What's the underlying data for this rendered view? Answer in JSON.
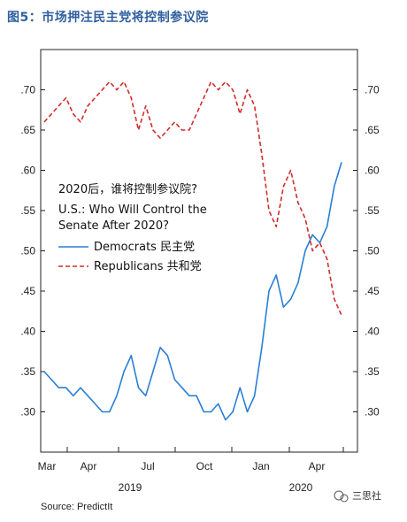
{
  "figure": {
    "title": "图5：市场押注民主党将控制参议院",
    "source": "Source: PredictIt",
    "watermark": "三思社"
  },
  "chart_data": {
    "type": "line",
    "title": "2020后，谁将控制参议院?",
    "subtitle": "U.S.: Who Will Control the Senate After 2020?",
    "xlabel": "",
    "ylabel": "",
    "ylim": [
      0.25,
      0.75
    ],
    "y_ticks": [
      ".30",
      ".35",
      ".40",
      ".45",
      ".50",
      ".55",
      ".60",
      ".65",
      ".70"
    ],
    "x_ticks": [
      "Mar",
      "Apr",
      "Jul",
      "Oct",
      "Jan",
      "Apr"
    ],
    "x_year_labels": [
      "2019",
      "2020"
    ],
    "grid": false,
    "legend_position": "upper-left inside",
    "x": [
      "2019-03",
      "2019-03",
      "2019-03",
      "2019-04",
      "2019-04",
      "2019-04",
      "2019-05",
      "2019-05",
      "2019-06",
      "2019-06",
      "2019-06",
      "2019-07",
      "2019-07",
      "2019-07",
      "2019-08",
      "2019-08",
      "2019-08",
      "2019-09",
      "2019-09",
      "2019-10",
      "2019-10",
      "2019-10",
      "2019-11",
      "2019-11",
      "2019-12",
      "2019-12",
      "2019-12",
      "2020-01",
      "2020-01",
      "2020-01",
      "2020-02",
      "2020-02",
      "2020-02",
      "2020-02",
      "2020-03",
      "2020-03",
      "2020-03",
      "2020-04",
      "2020-04",
      "2020-04",
      "2020-05",
      "2020-05"
    ],
    "series": [
      {
        "name": "Democrats 民主党",
        "color": "#2a7fd4",
        "dash": "solid",
        "values": [
          0.35,
          0.34,
          0.33,
          0.33,
          0.32,
          0.33,
          0.32,
          0.31,
          0.3,
          0.3,
          0.32,
          0.35,
          0.37,
          0.33,
          0.32,
          0.35,
          0.38,
          0.37,
          0.34,
          0.33,
          0.32,
          0.32,
          0.3,
          0.3,
          0.31,
          0.29,
          0.3,
          0.33,
          0.3,
          0.32,
          0.38,
          0.45,
          0.47,
          0.43,
          0.44,
          0.46,
          0.5,
          0.52,
          0.51,
          0.53,
          0.58,
          0.61
        ]
      },
      {
        "name": "Republicans 共和党",
        "color": "#d22b2b",
        "dash": "dashed",
        "values": [
          0.66,
          0.67,
          0.68,
          0.69,
          0.67,
          0.66,
          0.68,
          0.69,
          0.7,
          0.71,
          0.7,
          0.71,
          0.69,
          0.65,
          0.68,
          0.65,
          0.64,
          0.65,
          0.66,
          0.65,
          0.65,
          0.67,
          0.69,
          0.71,
          0.7,
          0.71,
          0.7,
          0.67,
          0.7,
          0.68,
          0.62,
          0.55,
          0.53,
          0.58,
          0.6,
          0.56,
          0.54,
          0.5,
          0.51,
          0.49,
          0.44,
          0.42
        ]
      }
    ]
  }
}
